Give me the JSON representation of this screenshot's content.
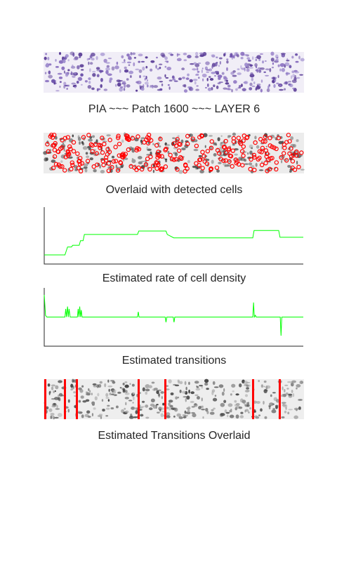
{
  "header_caption": "PIA  ~~~      Patch 1600    ~~~  LAYER 6",
  "overlay_caption": "Overlaid with detected cells",
  "chart_data": [
    {
      "type": "line",
      "caption": "Estimated rate of cell density",
      "color": "#00ff00",
      "xlim": [
        0,
        100
      ],
      "ylim": [
        0,
        10
      ],
      "x": [
        0,
        8,
        9,
        10.5,
        11,
        13.5,
        14,
        15,
        15.5,
        36,
        36.5,
        47,
        47.5,
        50,
        80.5,
        81,
        90.5,
        91,
        100
      ],
      "values": [
        1.6,
        1.6,
        3.0,
        3.0,
        3.3,
        3.3,
        4.1,
        4.1,
        5.2,
        5.2,
        5.8,
        5.8,
        5.2,
        4.6,
        4.6,
        5.9,
        5.9,
        4.7,
        4.7
      ]
    },
    {
      "type": "line",
      "caption": "Estimated transitions",
      "color": "#00ff00",
      "xlim": [
        0,
        100
      ],
      "ylim": [
        -5,
        5
      ],
      "x": [
        0,
        0.5,
        1,
        8,
        8.3,
        8.6,
        9,
        9.3,
        9.6,
        10,
        12.8,
        13.1,
        13.4,
        13.7,
        14,
        14.3,
        14.6,
        36,
        36.3,
        36.6,
        46.7,
        47,
        47.3,
        49.8,
        50.1,
        50.4,
        80.5,
        80.8,
        81.1,
        81.5,
        81.8,
        91.1,
        91.4,
        91.7,
        100
      ],
      "values": [
        3.8,
        0.3,
        0,
        0,
        1.4,
        0,
        1.8,
        0,
        1.4,
        0,
        0,
        1.4,
        0,
        1.8,
        0,
        1.2,
        0,
        0,
        0.9,
        0,
        0,
        -0.9,
        0,
        0,
        -0.9,
        0,
        0,
        2.5,
        0,
        0.3,
        0,
        0,
        -3.2,
        0,
        0
      ]
    }
  ],
  "transitions_caption": "Estimated Transitions Overlaid"
}
